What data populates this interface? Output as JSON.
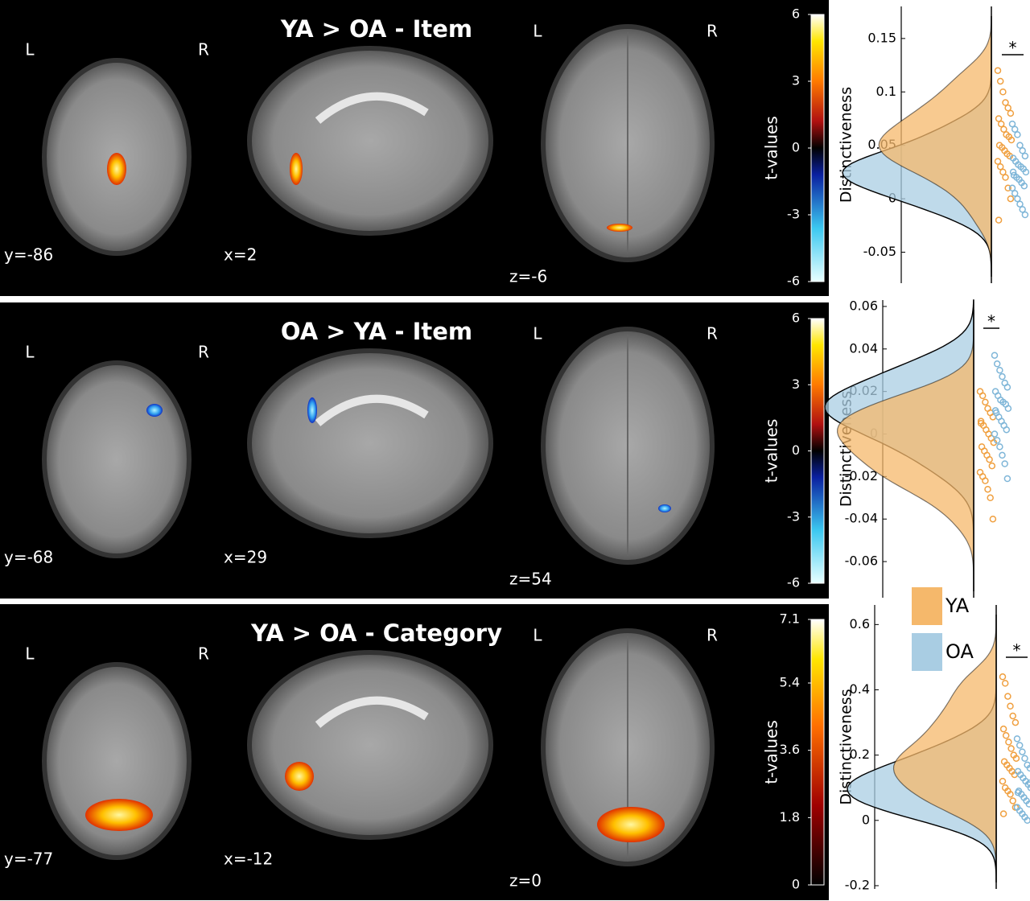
{
  "panels": [
    {
      "title": "YA > OA - Item",
      "slices": [
        {
          "coord": "y=-86",
          "left": "L",
          "right": "R"
        },
        {
          "coord": "x=2"
        },
        {
          "coord": "z=-6",
          "left": "L",
          "right": "R"
        }
      ],
      "colorbar": {
        "label": "t-values",
        "lim": [
          -6,
          6
        ],
        "ticks": [
          6,
          3,
          0,
          -3,
          -6
        ]
      }
    },
    {
      "title": "OA > YA - Item",
      "slices": [
        {
          "coord": "y=-68",
          "left": "L",
          "right": "R"
        },
        {
          "coord": "x=29"
        },
        {
          "coord": "z=54",
          "left": "L",
          "right": "R"
        }
      ],
      "colorbar": {
        "label": "t-values",
        "lim": [
          -6,
          6
        ],
        "ticks": [
          6,
          3,
          0,
          -3,
          -6
        ]
      }
    },
    {
      "title": "YA > OA - Category",
      "slices": [
        {
          "coord": "y=-77",
          "left": "L",
          "right": "R"
        },
        {
          "coord": "x=-12"
        },
        {
          "coord": "z=0",
          "left": "L",
          "right": "R"
        }
      ],
      "colorbar": {
        "label": "t-values",
        "lim": [
          0,
          7.1
        ],
        "ticks": [
          7.1,
          5.4,
          3.6,
          1.8,
          0
        ]
      }
    }
  ],
  "chart_data": [
    {
      "type": "raincloud",
      "y_label": "Distinctiveness",
      "annotation": "*",
      "ylim": [
        -0.079,
        0.18
      ],
      "yticks": [
        0.15,
        0.1,
        0.05,
        0,
        -0.05
      ],
      "legend": false,
      "series": [
        {
          "name": "YA",
          "color": "#f5b86b",
          "values": [
            0.12,
            0.11,
            0.1,
            0.09,
            0.085,
            0.08,
            0.075,
            0.07,
            0.065,
            0.06,
            0.058,
            0.055,
            0.05,
            0.048,
            0.045,
            0.042,
            0.04,
            0.035,
            0.03,
            0.025,
            0.02,
            0.01,
            0.0,
            -0.02
          ]
        },
        {
          "name": "OA",
          "color": "#a9cde3",
          "values": [
            0.07,
            0.065,
            0.06,
            0.05,
            0.045,
            0.04,
            0.038,
            0.035,
            0.032,
            0.03,
            0.028,
            0.025,
            0.022,
            0.02,
            0.018,
            0.015,
            0.012,
            0.01,
            0.005,
            0.0,
            -0.005,
            -0.01,
            -0.015,
            0.025
          ]
        }
      ]
    },
    {
      "type": "raincloud",
      "y_label": "Distinctiveness",
      "annotation": "*",
      "ylim": [
        -0.077,
        0.063
      ],
      "yticks": [
        0.06,
        0.04,
        0.02,
        0,
        -0.02,
        -0.04,
        -0.06
      ],
      "legend": false,
      "series": [
        {
          "name": "YA",
          "color": "#f5b86b",
          "values": [
            0.02,
            0.018,
            0.015,
            0.012,
            0.01,
            0.008,
            0.006,
            0.004,
            0.002,
            0.0,
            -0.002,
            -0.004,
            -0.006,
            -0.008,
            -0.01,
            -0.012,
            -0.015,
            -0.018,
            -0.02,
            -0.022,
            -0.026,
            -0.03,
            -0.04,
            0.005
          ]
        },
        {
          "name": "OA",
          "color": "#a9cde3",
          "values": [
            0.037,
            0.033,
            0.03,
            0.027,
            0.024,
            0.022,
            0.02,
            0.018,
            0.016,
            0.015,
            0.014,
            0.012,
            0.01,
            0.008,
            0.006,
            0.004,
            0.002,
            0.0,
            -0.003,
            -0.006,
            -0.01,
            -0.014,
            -0.021,
            0.011
          ]
        }
      ]
    },
    {
      "type": "raincloud",
      "y_label": "Distinctiveness",
      "annotation": "*",
      "ylim": [
        -0.21,
        0.66
      ],
      "yticks": [
        0.6,
        0.4,
        0.2,
        0,
        -0.2
      ],
      "legend": true,
      "series": [
        {
          "name": "YA",
          "color": "#f5b86b",
          "values": [
            0.44,
            0.42,
            0.38,
            0.35,
            0.32,
            0.3,
            0.28,
            0.26,
            0.24,
            0.22,
            0.2,
            0.19,
            0.18,
            0.17,
            0.16,
            0.15,
            0.14,
            0.12,
            0.1,
            0.09,
            0.08,
            0.06,
            0.04,
            0.02
          ]
        },
        {
          "name": "OA",
          "color": "#a9cde3",
          "values": [
            0.25,
            0.23,
            0.21,
            0.19,
            0.17,
            0.16,
            0.15,
            0.14,
            0.13,
            0.12,
            0.11,
            0.1,
            0.09,
            0.08,
            0.07,
            0.06,
            0.05,
            0.04,
            0.03,
            0.02,
            0.01,
            0.0,
            0.115,
            0.085
          ]
        }
      ]
    }
  ]
}
